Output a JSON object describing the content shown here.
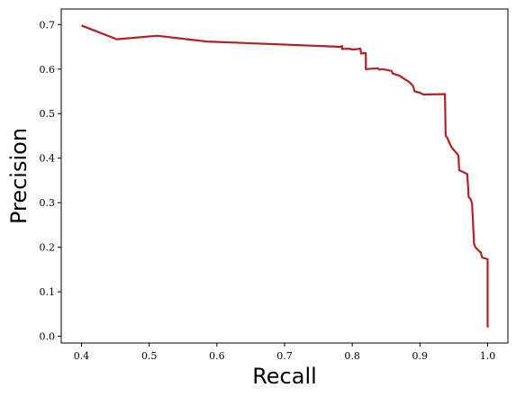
{
  "chart_data": {
    "type": "line",
    "xlabel": "Recall",
    "ylabel": "Precision",
    "xlim": [
      0.37,
      1.03
    ],
    "ylim": [
      -0.015,
      0.735
    ],
    "xticks": [
      0.4,
      0.5,
      0.6,
      0.7,
      0.8,
      0.9,
      1.0
    ],
    "xtick_labels": [
      "0.4",
      "0.5",
      "0.6",
      "0.7",
      "0.8",
      "0.9",
      "1.0"
    ],
    "yticks": [
      0.0,
      0.1,
      0.2,
      0.3,
      0.4,
      0.5,
      0.6,
      0.7
    ],
    "ytick_labels": [
      "0.0",
      "0.1",
      "0.2",
      "0.3",
      "0.4",
      "0.5",
      "0.6",
      "0.7"
    ],
    "grid": false,
    "legend": "none",
    "series": [
      {
        "color": "#b22222",
        "x": [
          0.4,
          0.452,
          0.512,
          0.585,
          0.783,
          0.785,
          0.785,
          0.795,
          0.8,
          0.808,
          0.812,
          0.813,
          0.818,
          0.82,
          0.82,
          0.838,
          0.84,
          0.845,
          0.855,
          0.858,
          0.86,
          0.87,
          0.875,
          0.883,
          0.885,
          0.89,
          0.892,
          0.9,
          0.905,
          0.937,
          0.938,
          0.94,
          0.945,
          0.947,
          0.955,
          0.957,
          0.958,
          0.965,
          0.97,
          0.972,
          0.975,
          0.977,
          0.98,
          0.982,
          0.985,
          0.99,
          0.992,
          1.0,
          1.0
        ],
        "y": [
          0.698,
          0.667,
          0.675,
          0.662,
          0.65,
          0.652,
          0.645,
          0.646,
          0.644,
          0.645,
          0.646,
          0.635,
          0.636,
          0.636,
          0.6,
          0.602,
          0.599,
          0.6,
          0.597,
          0.596,
          0.59,
          0.585,
          0.58,
          0.572,
          0.57,
          0.562,
          0.55,
          0.547,
          0.543,
          0.544,
          0.45,
          0.447,
          0.43,
          0.424,
          0.41,
          0.405,
          0.373,
          0.368,
          0.364,
          0.313,
          0.308,
          0.298,
          0.208,
          0.2,
          0.195,
          0.188,
          0.177,
          0.173,
          0.02
        ]
      }
    ]
  }
}
